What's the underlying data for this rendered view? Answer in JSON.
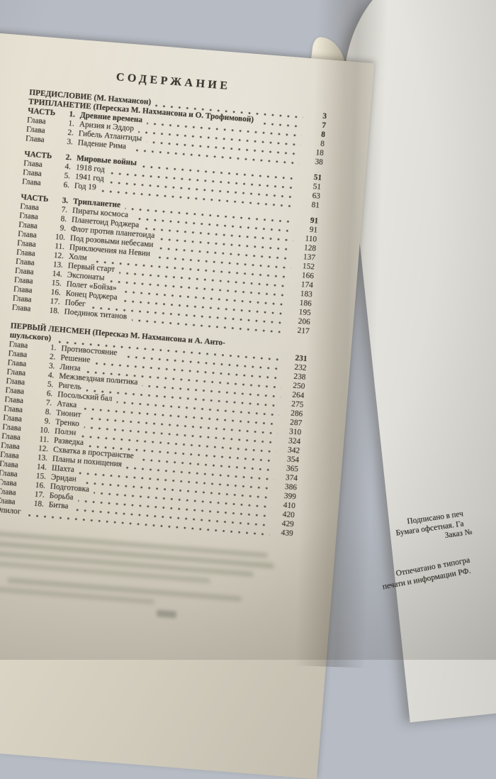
{
  "toc": {
    "title": "СОДЕРЖАНИЕ",
    "rows": [
      {
        "t": "header",
        "label": "ПРЕДИСЛОВИЕ (М. Нахмансон)",
        "page": "3"
      },
      {
        "t": "header",
        "label": "ТРИПЛАНЕТИЕ (Пересказ М. Нахмансона и О. Трофимовой)",
        "page": "7"
      },
      {
        "t": "part",
        "prefix": "ЧАСТЬ",
        "num": "1.",
        "title": "Древние времена",
        "page": "8"
      },
      {
        "t": "ch",
        "prefix": "Глава",
        "num": "1.",
        "title": "Аризия и Эддор",
        "page": "8"
      },
      {
        "t": "ch",
        "prefix": "Глава",
        "num": "2.",
        "title": "Гибель Атлантиды",
        "page": "18"
      },
      {
        "t": "ch",
        "prefix": "Глава",
        "num": "3.",
        "title": "Падение Рима",
        "page": "38"
      },
      {
        "t": "part",
        "gap": "sm",
        "prefix": "ЧАСТЬ",
        "num": "2.",
        "title": "Мировые войны",
        "page": "51"
      },
      {
        "t": "ch",
        "prefix": "Глава",
        "num": "4.",
        "title": "1918 год",
        "page": "51"
      },
      {
        "t": "ch",
        "prefix": "Глава",
        "num": "5.",
        "title": "1941 год",
        "page": "63"
      },
      {
        "t": "ch",
        "prefix": "Глава",
        "num": "6.",
        "title": "Год 19",
        "page": "81"
      },
      {
        "t": "part",
        "gap": "sm",
        "prefix": "ЧАСТЬ",
        "num": "3.",
        "title": "Трипланетие",
        "page": "91"
      },
      {
        "t": "ch",
        "prefix": "Глава",
        "num": "7.",
        "title": "Пираты космоса",
        "page": "91"
      },
      {
        "t": "ch",
        "prefix": "Глава",
        "num": "8.",
        "title": "Планетоид Роджера",
        "page": "110"
      },
      {
        "t": "ch",
        "prefix": "Глава",
        "num": "9.",
        "title": "Флот против планетоида",
        "page": "128"
      },
      {
        "t": "ch",
        "prefix": "Глава",
        "num": "10.",
        "title": "Под розовыми небесами",
        "page": "137"
      },
      {
        "t": "ch",
        "prefix": "Глава",
        "num": "11.",
        "title": "Приключения на Невии",
        "page": "152"
      },
      {
        "t": "ch",
        "prefix": "Глава",
        "num": "12.",
        "title": "Холм",
        "page": "166"
      },
      {
        "t": "ch",
        "prefix": "Глава",
        "num": "13.",
        "title": "Первый старт",
        "page": "174"
      },
      {
        "t": "ch",
        "prefix": "Глава",
        "num": "14.",
        "title": "Экспонаты",
        "page": "183"
      },
      {
        "t": "ch",
        "prefix": "Глава",
        "num": "15.",
        "title": "Полет «Бойза»",
        "page": "186"
      },
      {
        "t": "ch",
        "prefix": "Глава",
        "num": "16.",
        "title": "Конец Роджера",
        "page": "195"
      },
      {
        "t": "ch",
        "prefix": "Глава",
        "num": "17.",
        "title": "Побег",
        "page": "206"
      },
      {
        "t": "ch",
        "prefix": "Глава",
        "num": "18.",
        "title": "Поединок титанов",
        "page": "217"
      },
      {
        "t": "header2a",
        "gap": "lg",
        "label": "ПЕРВЫЙ ЛЕНСМЕН (Пересказ М. Нахмансона и А. Анто-"
      },
      {
        "t": "header2b",
        "label": "шульского)",
        "page": "231"
      },
      {
        "t": "ch",
        "prefix": "Глава",
        "num": "1.",
        "title": "Противостояние",
        "page": "232"
      },
      {
        "t": "ch",
        "prefix": "Глава",
        "num": "2.",
        "title": "Решение",
        "page": "238"
      },
      {
        "t": "ch",
        "prefix": "Глава",
        "num": "3.",
        "title": "Линза",
        "page": "250"
      },
      {
        "t": "ch",
        "prefix": "Глава",
        "num": "4.",
        "title": "Межзвездная политика",
        "page": "264"
      },
      {
        "t": "ch",
        "prefix": "Глава",
        "num": "5.",
        "title": "Ригель",
        "page": "275"
      },
      {
        "t": "ch",
        "prefix": "Глава",
        "num": "6.",
        "title": "Посольский бал",
        "page": "286"
      },
      {
        "t": "ch",
        "prefix": "Глава",
        "num": "7.",
        "title": "Атака",
        "page": "287"
      },
      {
        "t": "ch",
        "prefix": "Глава",
        "num": "8.",
        "title": "Тионит",
        "page": "310"
      },
      {
        "t": "ch",
        "prefix": "Глава",
        "num": "9.",
        "title": "Тренко",
        "page": "324"
      },
      {
        "t": "ch",
        "prefix": "Глава",
        "num": "10.",
        "title": "Полэн",
        "page": "342"
      },
      {
        "t": "ch",
        "prefix": "Глава",
        "num": "11.",
        "title": "Разведка",
        "page": "354"
      },
      {
        "t": "ch",
        "prefix": "Глава",
        "num": "12.",
        "title": "Схватка в пространстве",
        "page": "365"
      },
      {
        "t": "ch",
        "prefix": "Глава",
        "num": "13.",
        "title": "Планы и похищения",
        "page": "374"
      },
      {
        "t": "ch",
        "prefix": "Глава",
        "num": "14.",
        "title": "Шахта",
        "page": "386"
      },
      {
        "t": "ch",
        "prefix": "Глава",
        "num": "15.",
        "title": "Эридан",
        "page": "399"
      },
      {
        "t": "ch",
        "prefix": "Глава",
        "num": "16.",
        "title": "Подготовка",
        "page": "410"
      },
      {
        "t": "ch",
        "prefix": "Глава",
        "num": "17.",
        "title": "Борьба",
        "page": "420"
      },
      {
        "t": "ch",
        "prefix": "Глава",
        "num": "18.",
        "title": "Битва",
        "page": "429"
      },
      {
        "t": "plain",
        "label": "Эпилог",
        "page": "439"
      }
    ]
  },
  "right_page": {
    "print_info_top": [
      "Подписано в печ",
      "Бумага офсетная. Га",
      "Заказ №"
    ],
    "print_info_bottom": [
      "Отпечатано в типогра",
      "печати и информации РФ."
    ]
  },
  "colors": {
    "wall": "#b6bbc4",
    "paper_left": "#ddd7c8",
    "paper_right": "#dedcd6",
    "ink": "#3a352e"
  }
}
